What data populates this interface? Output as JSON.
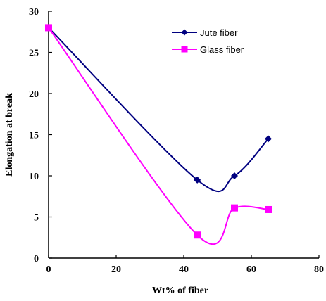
{
  "chart_data": {
    "type": "line",
    "title": "",
    "xlabel": "Wt% of fiber",
    "ylabel": "Elongation at break",
    "xlim": [
      0,
      80
    ],
    "ylim": [
      0,
      30
    ],
    "xticks": [
      "0",
      "20",
      "40",
      "60",
      "80"
    ],
    "yticks": [
      "0",
      "5",
      "10",
      "15",
      "20",
      "25",
      "30"
    ],
    "grid": false,
    "legend_position": "top-right",
    "series": [
      {
        "name": "Jute fiber",
        "color": "#000080",
        "marker": "diamond",
        "x": [
          0,
          44,
          55,
          65
        ],
        "y": [
          28,
          9.5,
          10,
          14.5
        ]
      },
      {
        "name": "Glass fiber",
        "color": "#ff00ff",
        "marker": "square",
        "x": [
          0,
          44,
          55,
          65
        ],
        "y": [
          28,
          2.8,
          6.1,
          5.9
        ]
      }
    ]
  }
}
